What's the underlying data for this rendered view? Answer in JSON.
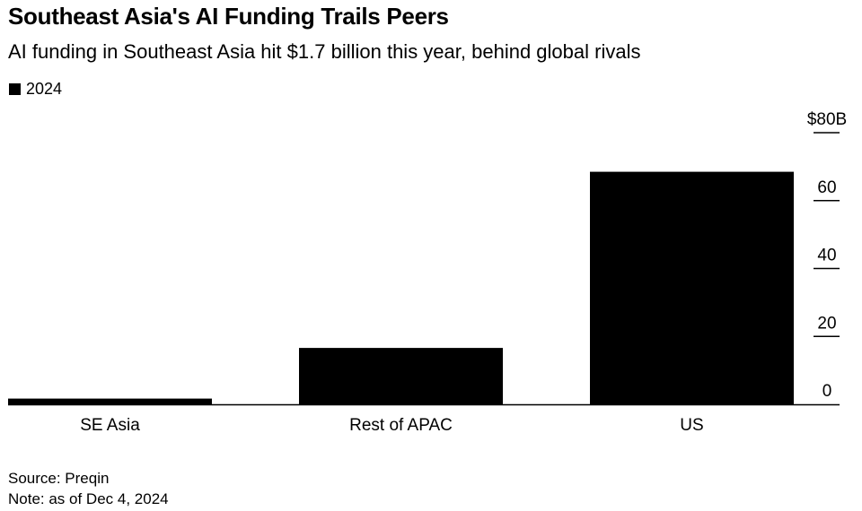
{
  "title": "Southeast Asia's AI Funding Trails Peers",
  "subtitle": "AI funding in Southeast Asia hit $1.7 billion this year, behind global rivals",
  "legend": [
    {
      "label": "2024",
      "color": "#000000"
    }
  ],
  "chart_data": {
    "type": "bar",
    "categories": [
      "SE Asia",
      "Rest of APAC",
      "US"
    ],
    "series": [
      {
        "name": "2024",
        "values": [
          1.7,
          16.6,
          68.5
        ],
        "color": "#000000"
      }
    ],
    "y_ticks": [
      0,
      20,
      40,
      60,
      80
    ],
    "y_tick_labels": [
      "0",
      "20",
      "40",
      "60",
      "$80B"
    ],
    "ylim": [
      0,
      80
    ],
    "y_axis_position": "right",
    "grid": false
  },
  "footer": {
    "source": "Source: Preqin",
    "note": "Note: as of Dec 4, 2024"
  }
}
